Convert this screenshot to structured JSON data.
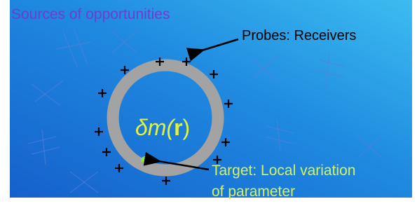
{
  "title": "Sources of opportunities",
  "probes_label": "Probes: Receivers",
  "formula": {
    "head": "δm(",
    "arg": "r",
    "tail": ")"
  },
  "target_label": [
    "Target: Local variation",
    "of parameter"
  ]
}
